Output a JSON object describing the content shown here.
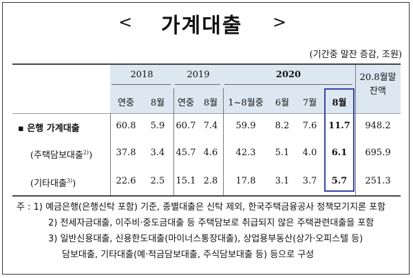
{
  "title": {
    "left": "<",
    "text": "가계대출",
    "right": ">"
  },
  "unit": "(기간중 말잔 증감, 조원)",
  "header": {
    "years": [
      "2018",
      "2019",
      "2020"
    ],
    "balance_label_line1": "20.8월말",
    "balance_label_line2": "잔액",
    "sub": [
      "연중",
      "8월",
      "연중",
      "8월",
      "1~8월중",
      "6월",
      "7월",
      "8월"
    ]
  },
  "rows": [
    {
      "label": "▪ 은행 가계대출",
      "values": [
        "60.8",
        "5.9",
        "60.7",
        "7.4",
        "59.9",
        "8.2",
        "7.6",
        "11.7",
        "948.2"
      ]
    },
    {
      "label": "(주택담보대출",
      "sup": "2)",
      "label_end": ")",
      "values": [
        "37.8",
        "3.4",
        "45.7",
        "4.6",
        "42.3",
        "5.1",
        "4.0",
        "6.1",
        "695.9"
      ]
    },
    {
      "label": "(기타대출",
      "sup": "3)",
      "label_end": ")",
      "values": [
        "22.6",
        "2.5",
        "15.1",
        "2.8",
        "17.8",
        "3.1",
        "3.7",
        "5.7",
        "251.3"
      ]
    }
  ],
  "notes": [
    "주 : 1) 예금은행(은행신탁 포함) 기준, 종별대출은 신탁 제외, 한국주택금융공사 정책모기지론 포함",
    "2) 전세자금대출, 이주비·중도금대출 등 주택담보로 취급되지 않은 주택관련대출을 포함",
    "3) 일반신용대출, 신용한도대출(마이너스통장대출), 상업용부동산(상가·오피스텔 등)",
    "담보대출, 기타대출(예·적금담보대출, 주식담보대출 등) 등으로 구성"
  ],
  "colors": {
    "header_bg": "#dde7f1",
    "highlight_border": "#3344aa"
  }
}
